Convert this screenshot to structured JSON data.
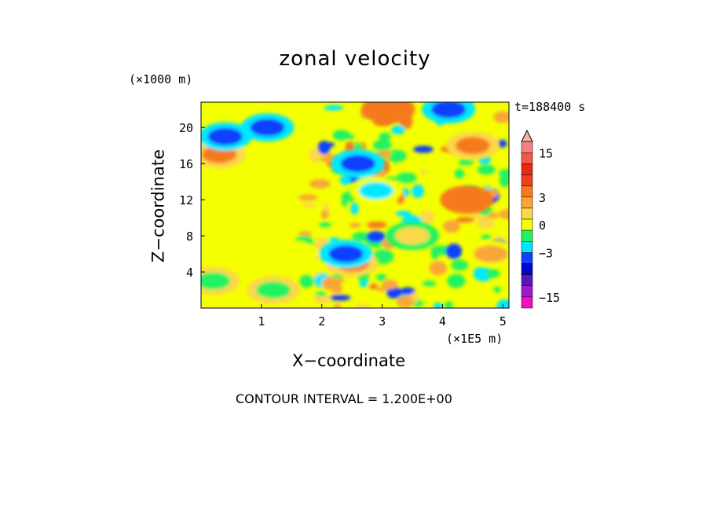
{
  "chart_data": {
    "type": "heatmap",
    "title": "zonal velocity",
    "xlabel": "X−coordinate",
    "ylabel": "Z−coordinate",
    "x_unit": "(×1E5 m)",
    "y_unit": "(×1000 m)",
    "time_label": "t=188400 s",
    "contour_interval_text": "CONTOUR INTERVAL = 1.200E+00",
    "xlim": [
      0,
      5.1
    ],
    "ylim": [
      0,
      22.8
    ],
    "x_ticks": [
      1,
      2,
      3,
      4,
      5
    ],
    "y_ticks": [
      4,
      8,
      12,
      16,
      20
    ],
    "colorbar": {
      "tick_labels": [
        "15",
        "3",
        "0",
        "−3",
        "−15"
      ],
      "tick_values": [
        15,
        3,
        0,
        -3,
        -15
      ],
      "levels": [
        {
          "min": 18,
          "max": null,
          "color": "#f4b4a8"
        },
        {
          "min": 15,
          "max": 18,
          "color": "#f58080"
        },
        {
          "min": 12,
          "max": 15,
          "color": "#f0584c"
        },
        {
          "min": 9,
          "max": 12,
          "color": "#ea2a10"
        },
        {
          "min": 6,
          "max": 9,
          "color": "#f2401e"
        },
        {
          "min": 3,
          "max": 6,
          "color": "#f57a1a"
        },
        {
          "min": 1.8,
          "max": 3,
          "color": "#f9a637"
        },
        {
          "min": 0.6,
          "max": 1.8,
          "color": "#fbd84a"
        },
        {
          "min": -0.6,
          "max": 0.6,
          "color": "#f4ff00"
        },
        {
          "min": -1.8,
          "max": -0.6,
          "color": "#22f262"
        },
        {
          "min": -3,
          "max": -1.8,
          "color": "#00e8ff"
        },
        {
          "min": -6,
          "max": -3,
          "color": "#1040ff"
        },
        {
          "min": -9,
          "max": -6,
          "color": "#0008c8"
        },
        {
          "min": -12,
          "max": -9,
          "color": "#5a16b8"
        },
        {
          "min": -15,
          "max": -12,
          "color": "#a018d0"
        },
        {
          "min": null,
          "max": -15,
          "color": "#f010c0"
        }
      ]
    },
    "regions": [
      {
        "x": 0.6,
        "z": 10,
        "value": 0
      },
      {
        "x": 1.5,
        "z": 6,
        "value": 0
      },
      {
        "x": 0.2,
        "z": 3,
        "value": -1
      },
      {
        "x": 1.2,
        "z": 2,
        "value": -1
      },
      {
        "x": 0.3,
        "z": 17,
        "value": 3
      },
      {
        "x": 0.4,
        "z": 19,
        "value": -4
      },
      {
        "x": 1.1,
        "z": 20,
        "value": -4
      },
      {
        "x": 2.6,
        "z": 16,
        "value": -4
      },
      {
        "x": 2.9,
        "z": 13,
        "value": -2
      },
      {
        "x": 3.1,
        "z": 22,
        "value": 5
      },
      {
        "x": 4.1,
        "z": 22,
        "value": -5
      },
      {
        "x": 4.5,
        "z": 18,
        "value": 3
      },
      {
        "x": 4.4,
        "z": 12,
        "value": 5
      },
      {
        "x": 4.8,
        "z": 6,
        "value": 2
      },
      {
        "x": 2.5,
        "z": 5,
        "value": 3
      },
      {
        "x": 2.4,
        "z": 6,
        "value": -4
      },
      {
        "x": 3.5,
        "z": 8,
        "value": 1
      }
    ]
  }
}
